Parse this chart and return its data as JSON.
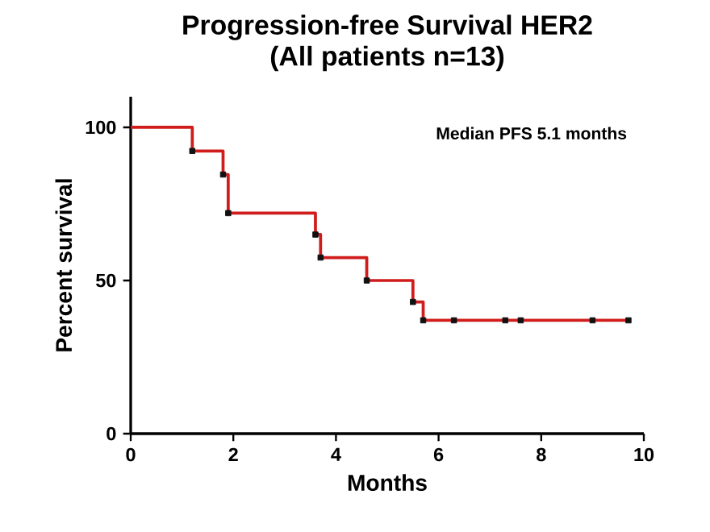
{
  "chart_data": {
    "type": "step",
    "title": "Progression-free Survival HER2",
    "subtitle": "(All patients n=13)",
    "xlabel": "Months",
    "ylabel": "Percent survival",
    "annotations": [
      "Median PFS 5.1 months"
    ],
    "xlim": [
      0,
      10
    ],
    "ylim": [
      0,
      110
    ],
    "xticks": [
      0,
      2,
      4,
      6,
      8,
      10
    ],
    "yticks": [
      0,
      50,
      100
    ],
    "series": [
      {
        "color": "#d01c1c",
        "marker": "none",
        "x": [
          0,
          1.2,
          1.8,
          1.9,
          3.6,
          3.7,
          4.6,
          5.5,
          5.7,
          9.7
        ],
        "values": [
          100,
          92.3,
          84.6,
          72,
          65,
          57.5,
          50,
          43,
          37,
          37
        ]
      },
      {
        "type": "scatter",
        "color": "#111111",
        "marker": "square",
        "x": [
          1.2,
          1.8,
          1.9,
          3.6,
          3.7,
          4.6,
          5.5,
          5.7,
          6.3,
          7.3,
          7.6,
          9.0,
          9.7
        ],
        "values": [
          92.3,
          84.6,
          72,
          65,
          57.5,
          50,
          43,
          37,
          37,
          37,
          37,
          37,
          37
        ]
      }
    ]
  }
}
